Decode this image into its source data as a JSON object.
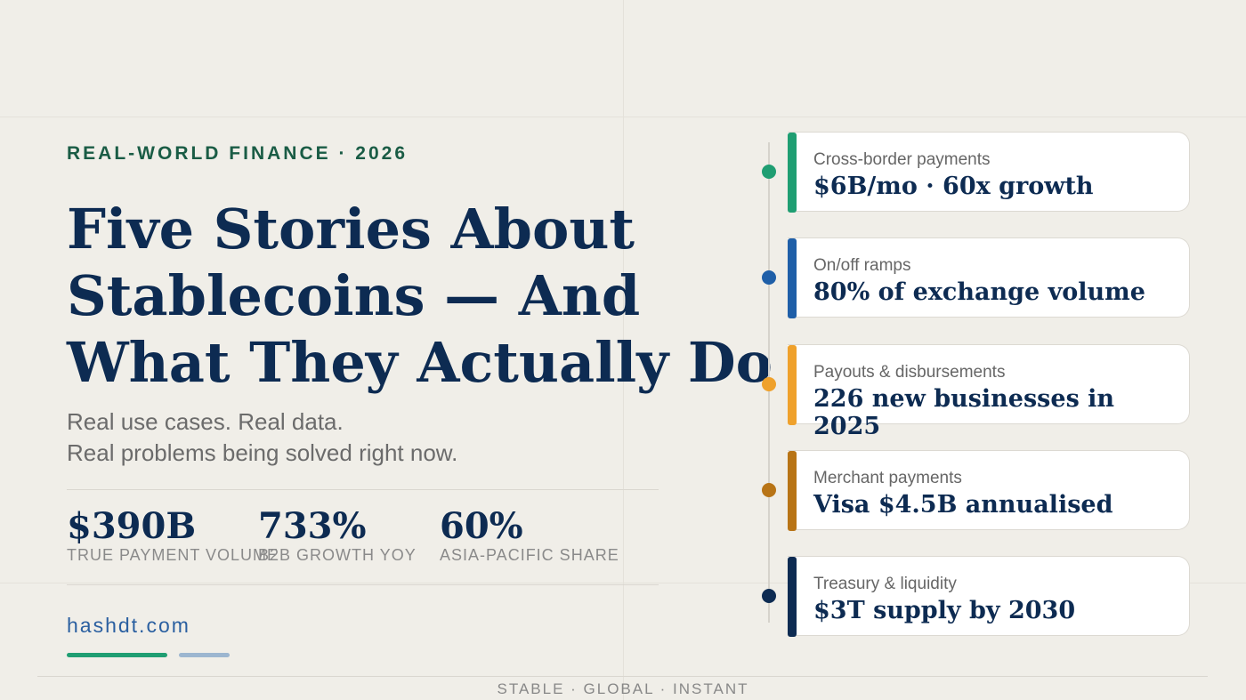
{
  "eyebrow": "REAL-WORLD FINANCE · 2026",
  "title": {
    "lines": [
      "Five Stories About",
      "Stablecoins — And",
      "What They Actually Do"
    ]
  },
  "subtitle": {
    "lines": [
      "Real use cases. Real data.",
      "Real problems being solved right now."
    ]
  },
  "stats": [
    {
      "value": "$390B",
      "label": "TRUE PAYMENT VOLUME"
    },
    {
      "value": "733%",
      "label": "B2B GROWTH YOY"
    },
    {
      "value": "60%",
      "label": "ASIA-PACIFIC SHARE"
    }
  ],
  "website": "hashdt.com",
  "footer": "STABLE · GLOBAL · INSTANT",
  "cards": [
    {
      "label": "Cross-border payments",
      "value": "$6B/mo · 60x growth",
      "color": "#1f9e72"
    },
    {
      "label": "On/off ramps",
      "value": "80% of exchange volume",
      "color": "#1f5fa8"
    },
    {
      "label": "Payouts & disbursements",
      "value": "226 new businesses in 2025",
      "color": "#efa12c"
    },
    {
      "label": "Merchant payments",
      "value": "Visa $4.5B annualised",
      "color": "#b87416"
    },
    {
      "label": "Treasury & liquidity",
      "value": "$3T supply by 2030",
      "color": "#0d2b52"
    }
  ]
}
